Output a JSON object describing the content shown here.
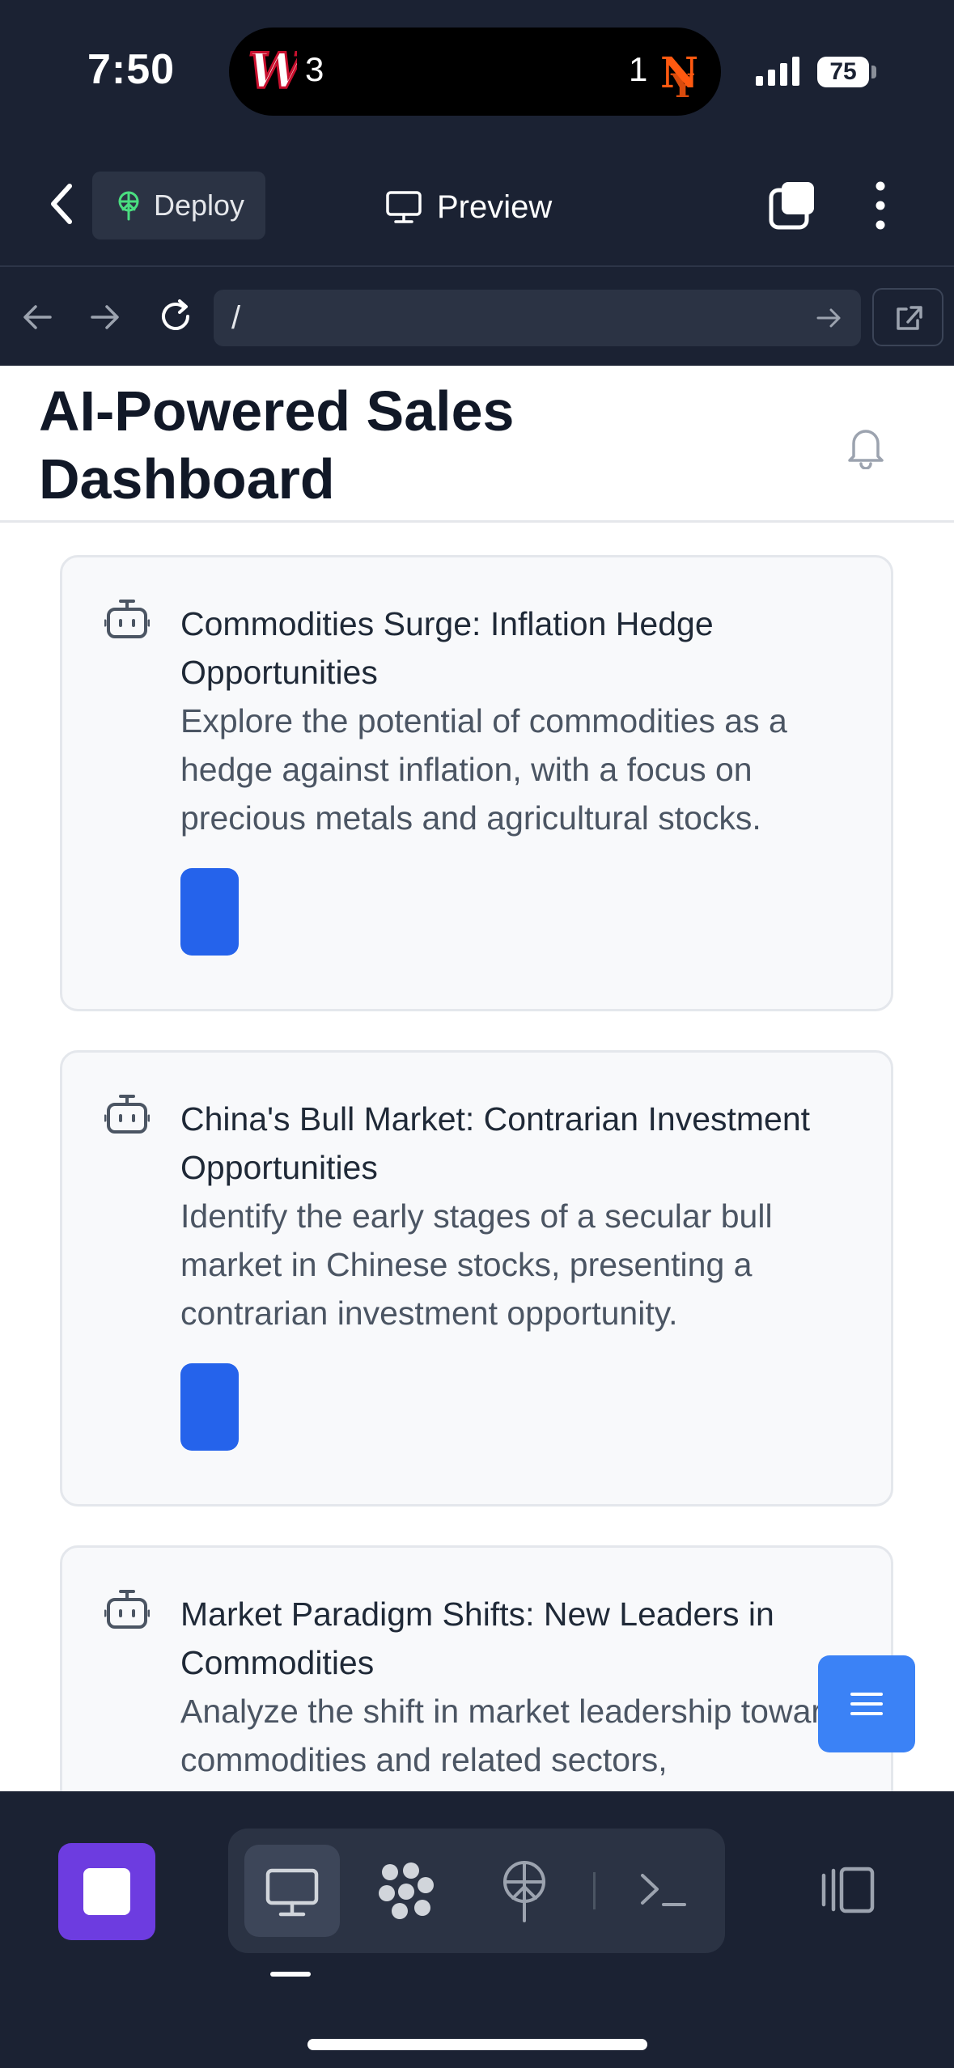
{
  "status_bar": {
    "time": "7:50",
    "score_left": "3",
    "score_right": "1",
    "battery": "75"
  },
  "toolbar": {
    "deploy_label": "Deploy",
    "preview_label": "Preview"
  },
  "browser": {
    "url": "/"
  },
  "page": {
    "title_line1": "AI-Powered Sales",
    "title_line2": "Dashboard"
  },
  "cards": [
    {
      "title": "Commodities Surge: Inflation Hedge Opportunities",
      "description": "Explore the potential of commodities as a hedge against inflation, with a focus on precious metals and agricultural stocks."
    },
    {
      "title": "China's Bull Market: Contrarian Investment Opportunities",
      "description": "Identify the early stages of a secular bull market in Chinese stocks, presenting a contrarian investment opportunity."
    },
    {
      "title": "Market Paradigm Shifts: New Leaders in Commodities",
      "description": "Analyze the shift in market leadership towards commodities and related sectors,"
    }
  ],
  "colors": {
    "chrome": "#1b2233",
    "accent_blue": "#2563eb",
    "fab_blue": "#3b82f6",
    "stop_purple": "#6d3ce0"
  }
}
